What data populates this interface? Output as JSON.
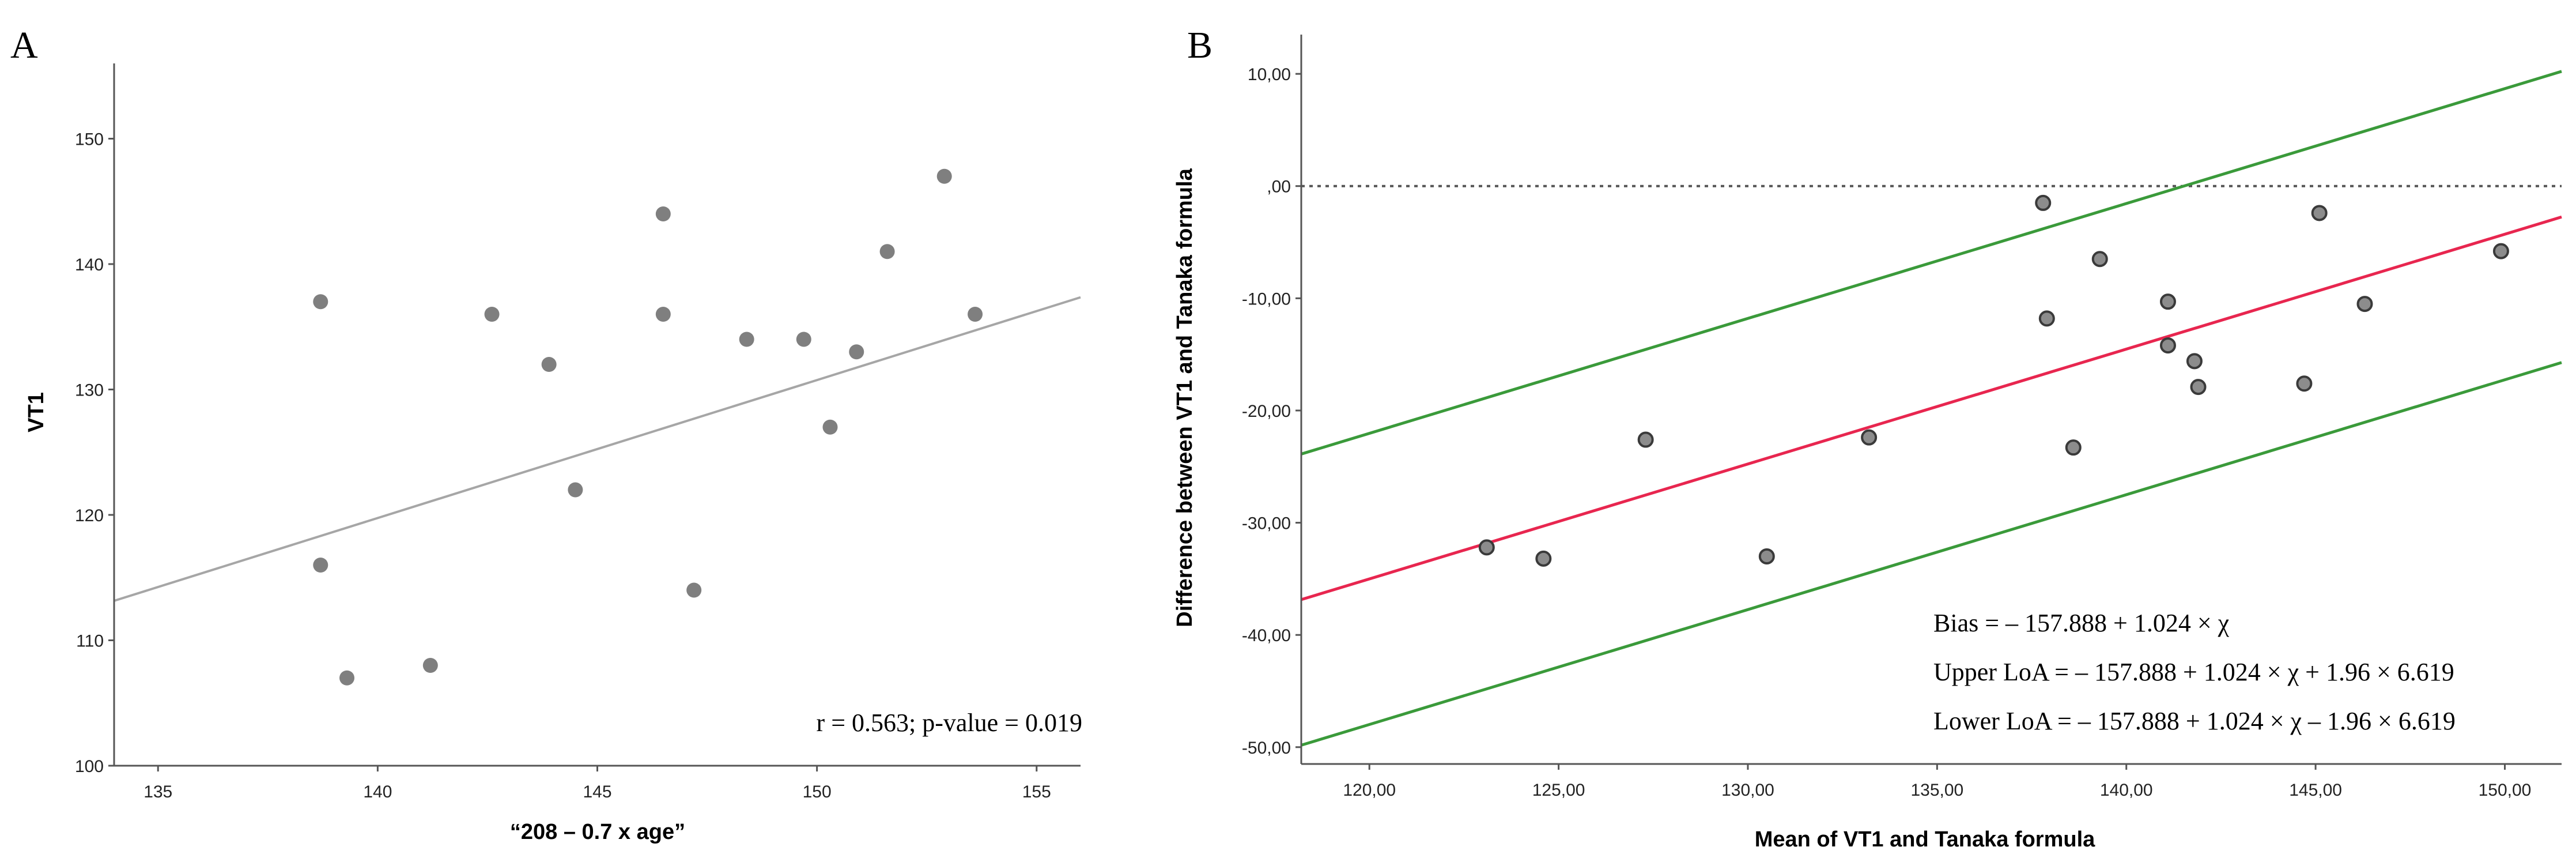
{
  "chart_data": [
    {
      "panel": "A",
      "type": "scatter",
      "title": "",
      "xlabel": "“208 – 0.7 x age”",
      "ylabel": "VT1",
      "xlim": [
        134,
        156
      ],
      "ylim": [
        100,
        156
      ],
      "x_ticks": [
        135,
        140,
        145,
        150,
        155
      ],
      "y_ticks": [
        100,
        110,
        120,
        130,
        140,
        150
      ],
      "x_tick_labels": [
        "135",
        "140",
        "145",
        "150",
        "155"
      ],
      "y_tick_labels": [
        "100",
        "110",
        "120",
        "130",
        "140",
        "150"
      ],
      "points": [
        [
          138.7,
          137
        ],
        [
          138.7,
          116
        ],
        [
          139.3,
          107
        ],
        [
          141.2,
          108
        ],
        [
          142.6,
          136
        ],
        [
          143.9,
          132
        ],
        [
          144.5,
          122
        ],
        [
          146.5,
          144
        ],
        [
          146.5,
          136
        ],
        [
          147.2,
          114
        ],
        [
          148.4,
          134
        ],
        [
          149.7,
          134
        ],
        [
          150.3,
          127
        ],
        [
          150.9,
          133
        ],
        [
          151.6,
          141
        ],
        [
          152.9,
          147
        ],
        [
          153.6,
          136
        ]
      ],
      "fit_line": {
        "slope": 1.1,
        "intercept": -34.25,
        "color": "#a6a6a6"
      },
      "annotation": "r = 0.563; p-value = 0.019",
      "colors": {
        "point": "#7f7f7f",
        "axis": "#555555"
      }
    },
    {
      "panel": "B",
      "type": "scatter",
      "title": "",
      "xlabel": "Mean of VT1 and Tanaka formula",
      "ylabel": "Difference between VT1 and Tanaka formula",
      "xlim": [
        118.2,
        151.5
      ],
      "ylim": [
        -51.5,
        13.5
      ],
      "x_ticks": [
        120,
        125,
        130,
        135,
        140,
        145,
        150
      ],
      "y_ticks": [
        10,
        0,
        -10,
        -20,
        -30,
        -40,
        -50
      ],
      "x_tick_labels": [
        "120,00",
        "125,00",
        "130,00",
        "135,00",
        "140,00",
        "145,00",
        "150,00"
      ],
      "y_tick_labels": [
        "10,00",
        ",00",
        "-10,00",
        "-20,00",
        "-30,00",
        "-40,00",
        "-50,00"
      ],
      "points": [
        [
          123.1,
          -32.2
        ],
        [
          124.6,
          -33.2
        ],
        [
          127.3,
          -22.6
        ],
        [
          130.5,
          -33.0
        ],
        [
          133.2,
          -22.4
        ],
        [
          137.8,
          -1.5
        ],
        [
          137.9,
          -11.8
        ],
        [
          138.6,
          -23.3
        ],
        [
          139.3,
          -6.5
        ],
        [
          141.1,
          -10.3
        ],
        [
          141.1,
          -14.2
        ],
        [
          141.8,
          -15.6
        ],
        [
          141.9,
          -17.9
        ],
        [
          144.7,
          -17.6
        ],
        [
          145.1,
          -2.4
        ],
        [
          146.3,
          -10.5
        ],
        [
          149.9,
          -5.8
        ]
      ],
      "zero_line": {
        "y": 0,
        "style": "dotted",
        "color": "#555555"
      },
      "bias_line": {
        "slope": 1.024,
        "intercept": -157.888,
        "color": "#e8264f"
      },
      "loa_sd": 6.619,
      "loa_color": "#3a9a3a",
      "annotations": [
        "Bias = – 157.888 + 1.024 × χ",
        "Upper LoA = – 157.888 + 1.024 × χ + 1.96 × 6.619",
        "Lower LoA = – 157.888 + 1.024 × χ – 1.96 × 6.619"
      ],
      "colors": {
        "point_fill": "#8c8c8c",
        "point_stroke": "#3a3a3a",
        "axis": "#555555"
      }
    }
  ]
}
